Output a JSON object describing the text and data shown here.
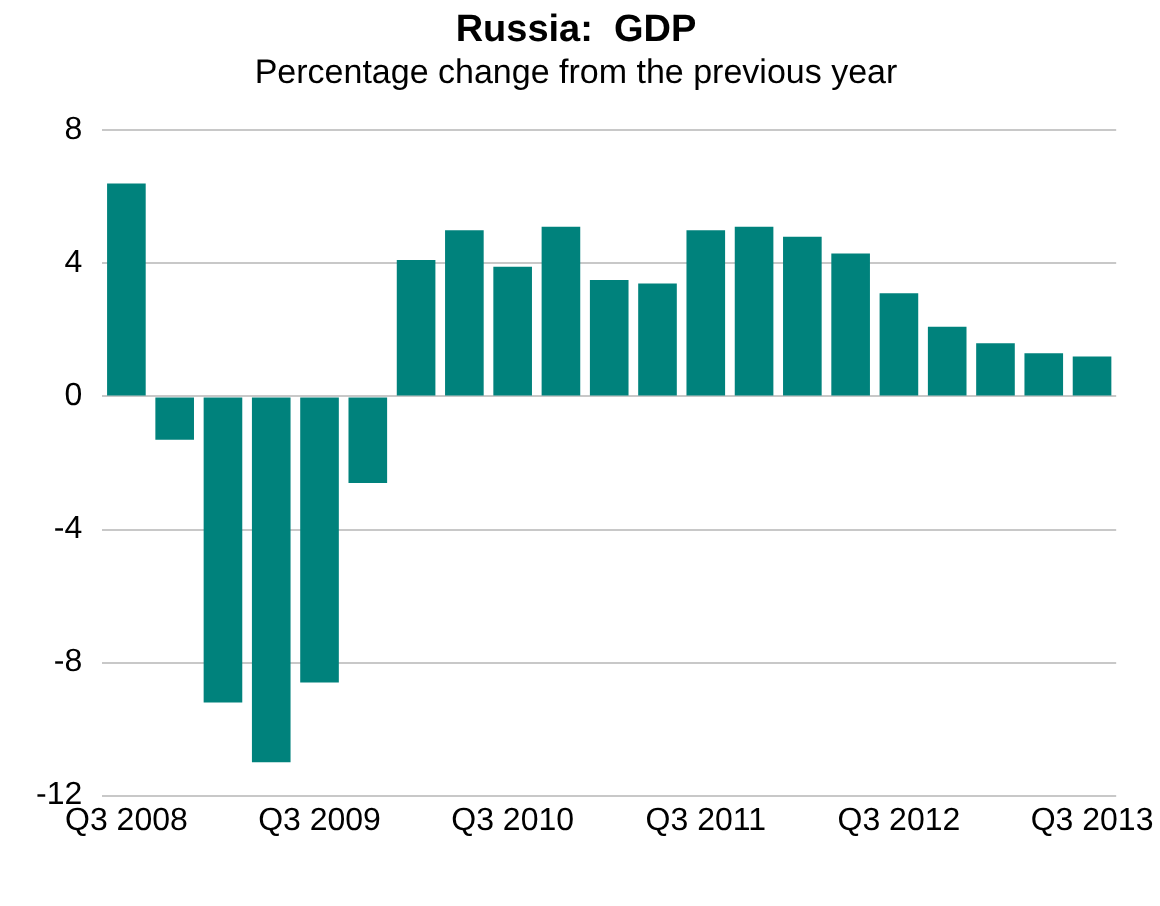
{
  "chart_data": {
    "type": "bar",
    "title": "Russia:  GDP",
    "subtitle": "Percentage change from the previous year",
    "categories": [
      "Q3 2008",
      null,
      null,
      null,
      "Q3 2009",
      null,
      null,
      null,
      "Q3 2010",
      null,
      null,
      null,
      "Q3 2011",
      null,
      null,
      null,
      "Q3 2012",
      null,
      null,
      null,
      "Q3 2013"
    ],
    "values": [
      6.4,
      -1.3,
      -9.2,
      -11.0,
      -8.6,
      -2.6,
      4.1,
      5.0,
      3.9,
      5.1,
      3.5,
      3.4,
      5.0,
      5.1,
      4.8,
      4.3,
      3.1,
      2.1,
      1.6,
      1.3,
      1.2
    ],
    "color": "#00827c",
    "ylim": [
      -12,
      8
    ],
    "yticks": [
      -12,
      -8,
      -4,
      0,
      4,
      8
    ],
    "grid": "y",
    "legend": false
  }
}
